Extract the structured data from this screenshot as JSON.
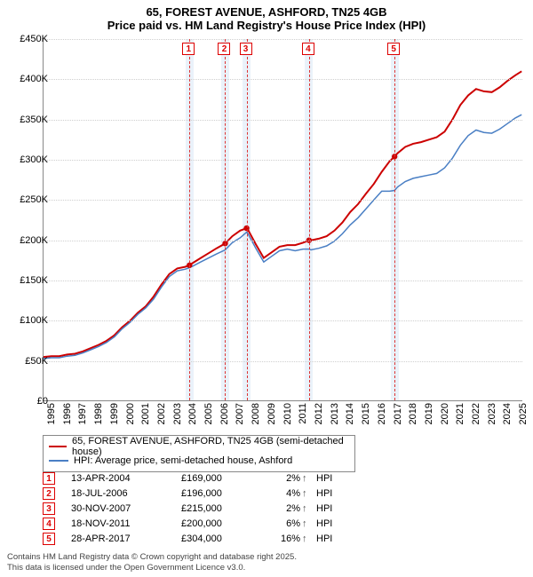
{
  "title": {
    "line1": "65, FOREST AVENUE, ASHFORD, TN25 4GB",
    "line2": "Price paid vs. HM Land Registry's House Price Index (HPI)"
  },
  "chart": {
    "type": "line",
    "background_color": "#ffffff",
    "grid_color": "#cfcfcf",
    "xlim": [
      1995,
      2025.5
    ],
    "ylim": [
      0,
      450000
    ],
    "ytick_step": 50000,
    "ytick_labels": [
      "£0",
      "£50K",
      "£100K",
      "£150K",
      "£200K",
      "£250K",
      "£300K",
      "£350K",
      "£400K",
      "£450K"
    ],
    "xtick_step": 1,
    "xtick_labels": [
      "1995",
      "1996",
      "1997",
      "1998",
      "1999",
      "2000",
      "2001",
      "2002",
      "2003",
      "2004",
      "2005",
      "2006",
      "2007",
      "2008",
      "2009",
      "2010",
      "2011",
      "2012",
      "2013",
      "2014",
      "2015",
      "2016",
      "2017",
      "2018",
      "2019",
      "2020",
      "2021",
      "2022",
      "2023",
      "2024",
      "2025"
    ],
    "series": [
      {
        "name": "price_paid",
        "label": "65, FOREST AVENUE, ASHFORD, TN25 4GB (semi-detached house)",
        "color": "#cc0000",
        "line_width": 2,
        "points": [
          [
            1995,
            55000
          ],
          [
            1995.5,
            56000
          ],
          [
            1996,
            56000
          ],
          [
            1996.5,
            58000
          ],
          [
            1997,
            59000
          ],
          [
            1997.5,
            62000
          ],
          [
            1998,
            66000
          ],
          [
            1998.5,
            70000
          ],
          [
            1999,
            75000
          ],
          [
            1999.5,
            82000
          ],
          [
            2000,
            92000
          ],
          [
            2000.5,
            100000
          ],
          [
            2001,
            110000
          ],
          [
            2001.5,
            118000
          ],
          [
            2002,
            130000
          ],
          [
            2002.5,
            145000
          ],
          [
            2003,
            158000
          ],
          [
            2003.5,
            165000
          ],
          [
            2004,
            167000
          ],
          [
            2004.28,
            169000
          ],
          [
            2004.5,
            172000
          ],
          [
            2005,
            178000
          ],
          [
            2005.5,
            184000
          ],
          [
            2006,
            190000
          ],
          [
            2006.55,
            196000
          ],
          [
            2007,
            205000
          ],
          [
            2007.5,
            212000
          ],
          [
            2007.91,
            215000
          ],
          [
            2008,
            213000
          ],
          [
            2008.5,
            195000
          ],
          [
            2009,
            178000
          ],
          [
            2009.5,
            185000
          ],
          [
            2010,
            192000
          ],
          [
            2010.5,
            194000
          ],
          [
            2011,
            194000
          ],
          [
            2011.5,
            197000
          ],
          [
            2011.88,
            200000
          ],
          [
            2012,
            200000
          ],
          [
            2012.5,
            202000
          ],
          [
            2013,
            205000
          ],
          [
            2013.5,
            212000
          ],
          [
            2014,
            222000
          ],
          [
            2014.5,
            235000
          ],
          [
            2015,
            245000
          ],
          [
            2015.5,
            258000
          ],
          [
            2016,
            270000
          ],
          [
            2016.5,
            285000
          ],
          [
            2017,
            298000
          ],
          [
            2017.32,
            304000
          ],
          [
            2017.5,
            308000
          ],
          [
            2018,
            316000
          ],
          [
            2018.5,
            320000
          ],
          [
            2019,
            322000
          ],
          [
            2019.5,
            325000
          ],
          [
            2020,
            328000
          ],
          [
            2020.5,
            335000
          ],
          [
            2021,
            350000
          ],
          [
            2021.5,
            368000
          ],
          [
            2022,
            380000
          ],
          [
            2022.5,
            388000
          ],
          [
            2023,
            385000
          ],
          [
            2023.5,
            384000
          ],
          [
            2024,
            390000
          ],
          [
            2024.5,
            398000
          ],
          [
            2025,
            405000
          ],
          [
            2025.4,
            410000
          ]
        ]
      },
      {
        "name": "hpi",
        "label": "HPI: Average price, semi-detached house, Ashford",
        "color": "#4a7fc4",
        "line_width": 1.5,
        "points": [
          [
            1995,
            53000
          ],
          [
            1995.5,
            54000
          ],
          [
            1996,
            54000
          ],
          [
            1996.5,
            56000
          ],
          [
            1997,
            57000
          ],
          [
            1997.5,
            60000
          ],
          [
            1998,
            64000
          ],
          [
            1998.5,
            68000
          ],
          [
            1999,
            73000
          ],
          [
            1999.5,
            80000
          ],
          [
            2000,
            90000
          ],
          [
            2000.5,
            98000
          ],
          [
            2001,
            108000
          ],
          [
            2001.5,
            116000
          ],
          [
            2002,
            127000
          ],
          [
            2002.5,
            142000
          ],
          [
            2003,
            155000
          ],
          [
            2003.5,
            162000
          ],
          [
            2004,
            164000
          ],
          [
            2004.28,
            166000
          ],
          [
            2004.5,
            168000
          ],
          [
            2005,
            173000
          ],
          [
            2005.5,
            178000
          ],
          [
            2006,
            183000
          ],
          [
            2006.55,
            188000
          ],
          [
            2007,
            197000
          ],
          [
            2007.5,
            203000
          ],
          [
            2007.91,
            210000
          ],
          [
            2008,
            208000
          ],
          [
            2008.5,
            190000
          ],
          [
            2009,
            173000
          ],
          [
            2009.5,
            180000
          ],
          [
            2010,
            187000
          ],
          [
            2010.5,
            189000
          ],
          [
            2011,
            187000
          ],
          [
            2011.5,
            189000
          ],
          [
            2011.88,
            189000
          ],
          [
            2012,
            188000
          ],
          [
            2012.5,
            190000
          ],
          [
            2013,
            193000
          ],
          [
            2013.5,
            199000
          ],
          [
            2014,
            208000
          ],
          [
            2014.5,
            219000
          ],
          [
            2015,
            228000
          ],
          [
            2015.5,
            239000
          ],
          [
            2016,
            250000
          ],
          [
            2016.5,
            261000
          ],
          [
            2017,
            261000
          ],
          [
            2017.32,
            262000
          ],
          [
            2017.5,
            266000
          ],
          [
            2018,
            273000
          ],
          [
            2018.5,
            277000
          ],
          [
            2019,
            279000
          ],
          [
            2019.5,
            281000
          ],
          [
            2020,
            283000
          ],
          [
            2020.5,
            290000
          ],
          [
            2021,
            302000
          ],
          [
            2021.5,
            318000
          ],
          [
            2022,
            330000
          ],
          [
            2022.5,
            337000
          ],
          [
            2023,
            334000
          ],
          [
            2023.5,
            333000
          ],
          [
            2024,
            338000
          ],
          [
            2024.5,
            345000
          ],
          [
            2025,
            352000
          ],
          [
            2025.4,
            356000
          ]
        ]
      }
    ],
    "markers": [
      {
        "n": "1",
        "x": 2004.28,
        "band_width": 0.5
      },
      {
        "n": "2",
        "x": 2006.55,
        "band_width": 0.5
      },
      {
        "n": "3",
        "x": 2007.91,
        "band_width": 0.5
      },
      {
        "n": "4",
        "x": 2011.88,
        "band_width": 0.5
      },
      {
        "n": "5",
        "x": 2017.32,
        "band_width": 0.5
      }
    ],
    "marker_dot_color": "#cc0000",
    "marker_band_color": "#eaf2fa",
    "marker_line_color": "#d33"
  },
  "legend": {
    "items": [
      {
        "color": "#cc0000",
        "label": "65, FOREST AVENUE, ASHFORD, TN25 4GB (semi-detached house)"
      },
      {
        "color": "#4a7fc4",
        "label": "HPI: Average price, semi-detached house, Ashford"
      }
    ]
  },
  "transactions": {
    "arrow": "↑",
    "hpi_label": "HPI",
    "rows": [
      {
        "n": "1",
        "date": "13-APR-2004",
        "price": "£169,000",
        "pct": "2%"
      },
      {
        "n": "2",
        "date": "18-JUL-2006",
        "price": "£196,000",
        "pct": "4%"
      },
      {
        "n": "3",
        "date": "30-NOV-2007",
        "price": "£215,000",
        "pct": "2%"
      },
      {
        "n": "4",
        "date": "18-NOV-2011",
        "price": "£200,000",
        "pct": "6%"
      },
      {
        "n": "5",
        "date": "28-APR-2017",
        "price": "£304,000",
        "pct": "16%"
      }
    ]
  },
  "footer": {
    "line1": "Contains HM Land Registry data © Crown copyright and database right 2025.",
    "line2": "This data is licensed under the Open Government Licence v3.0."
  }
}
